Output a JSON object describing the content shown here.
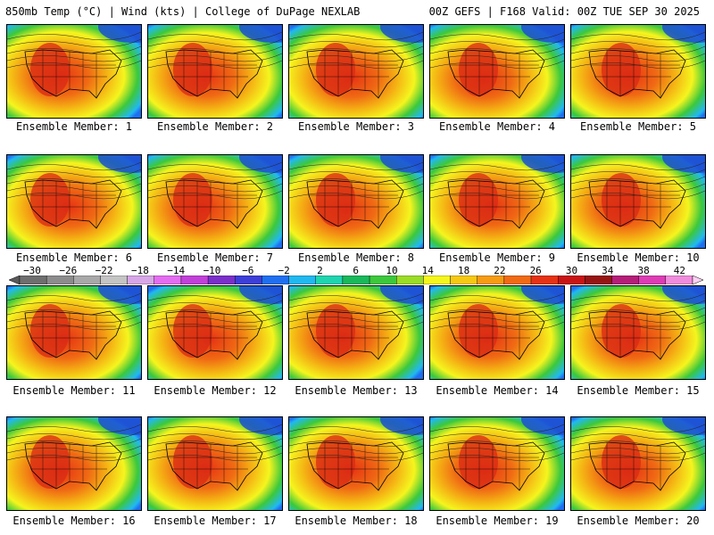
{
  "header": {
    "left_title": "850mb Temp (°C) | Wind (kts) | College of DuPage NEXLAB",
    "right_title": "00Z GEFS | F168 Valid: 00Z TUE SEP 30 2025"
  },
  "members": [
    {
      "label": "Ensemble Member: 1"
    },
    {
      "label": "Ensemble Member: 2"
    },
    {
      "label": "Ensemble Member: 3"
    },
    {
      "label": "Ensemble Member: 4"
    },
    {
      "label": "Ensemble Member: 5"
    },
    {
      "label": "Ensemble Member: 6"
    },
    {
      "label": "Ensemble Member: 7"
    },
    {
      "label": "Ensemble Member: 8"
    },
    {
      "label": "Ensemble Member: 9"
    },
    {
      "label": "Ensemble Member: 10"
    },
    {
      "label": "Ensemble Member: 11"
    },
    {
      "label": "Ensemble Member: 12"
    },
    {
      "label": "Ensemble Member: 13"
    },
    {
      "label": "Ensemble Member: 14"
    },
    {
      "label": "Ensemble Member: 15"
    },
    {
      "label": "Ensemble Member: 16"
    },
    {
      "label": "Ensemble Member: 17"
    },
    {
      "label": "Ensemble Member: 18"
    },
    {
      "label": "Ensemble Member: 19"
    },
    {
      "label": "Ensemble Member: 20"
    }
  ],
  "colorbar": {
    "tick_labels": [
      "−30",
      "−26",
      "−22",
      "−18",
      "−14",
      "−10",
      "−6",
      "−2",
      "2",
      "6",
      "10",
      "14",
      "18",
      "22",
      "26",
      "30",
      "34",
      "38",
      "42"
    ],
    "colors": [
      "#6e6e6e",
      "#8c8c8c",
      "#a8a8a8",
      "#c4c4c4",
      "#d7a6e6",
      "#e36cf0",
      "#c040d8",
      "#7a2fc8",
      "#3d3dd8",
      "#1f6ff0",
      "#21b8f0",
      "#20d4b0",
      "#19b85a",
      "#3cc83c",
      "#9bdc28",
      "#f5f51e",
      "#f5c814",
      "#f59b14",
      "#f06a14",
      "#e63214",
      "#c81414",
      "#961414",
      "#b41e78",
      "#dc3cb4",
      "#f08cdc"
    ]
  }
}
